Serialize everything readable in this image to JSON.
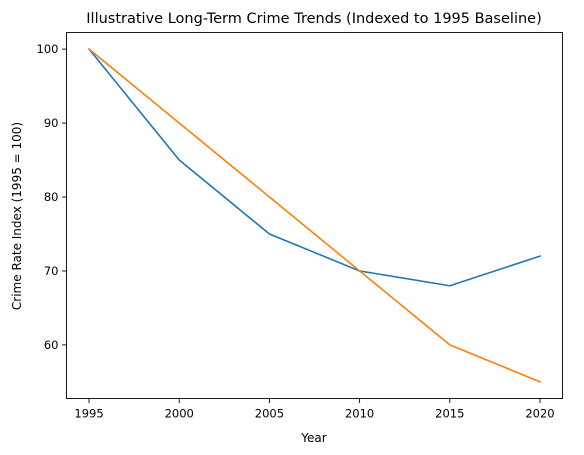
{
  "chart_data": {
    "type": "line",
    "title": "Illustrative Long-Term Crime Trends (Indexed to 1995 Baseline)",
    "xlabel": "Year",
    "ylabel": "Crime Rate Index (1995 = 100)",
    "x": [
      1995,
      2000,
      2005,
      2010,
      2015,
      2020
    ],
    "xlim": [
      1993.75,
      2021.25
    ],
    "ylim": [
      52.75,
      102.25
    ],
    "xticks": [
      1995,
      2000,
      2005,
      2010,
      2015,
      2020
    ],
    "yticks": [
      60,
      70,
      80,
      90,
      100
    ],
    "grid": false,
    "legend": "none",
    "series": [
      {
        "values": [
          100,
          85,
          75,
          70,
          68,
          72
        ],
        "color": "#1f77b4"
      },
      {
        "values": [
          100,
          90,
          80,
          70,
          60,
          55
        ],
        "color": "#ff7f0e"
      }
    ]
  }
}
